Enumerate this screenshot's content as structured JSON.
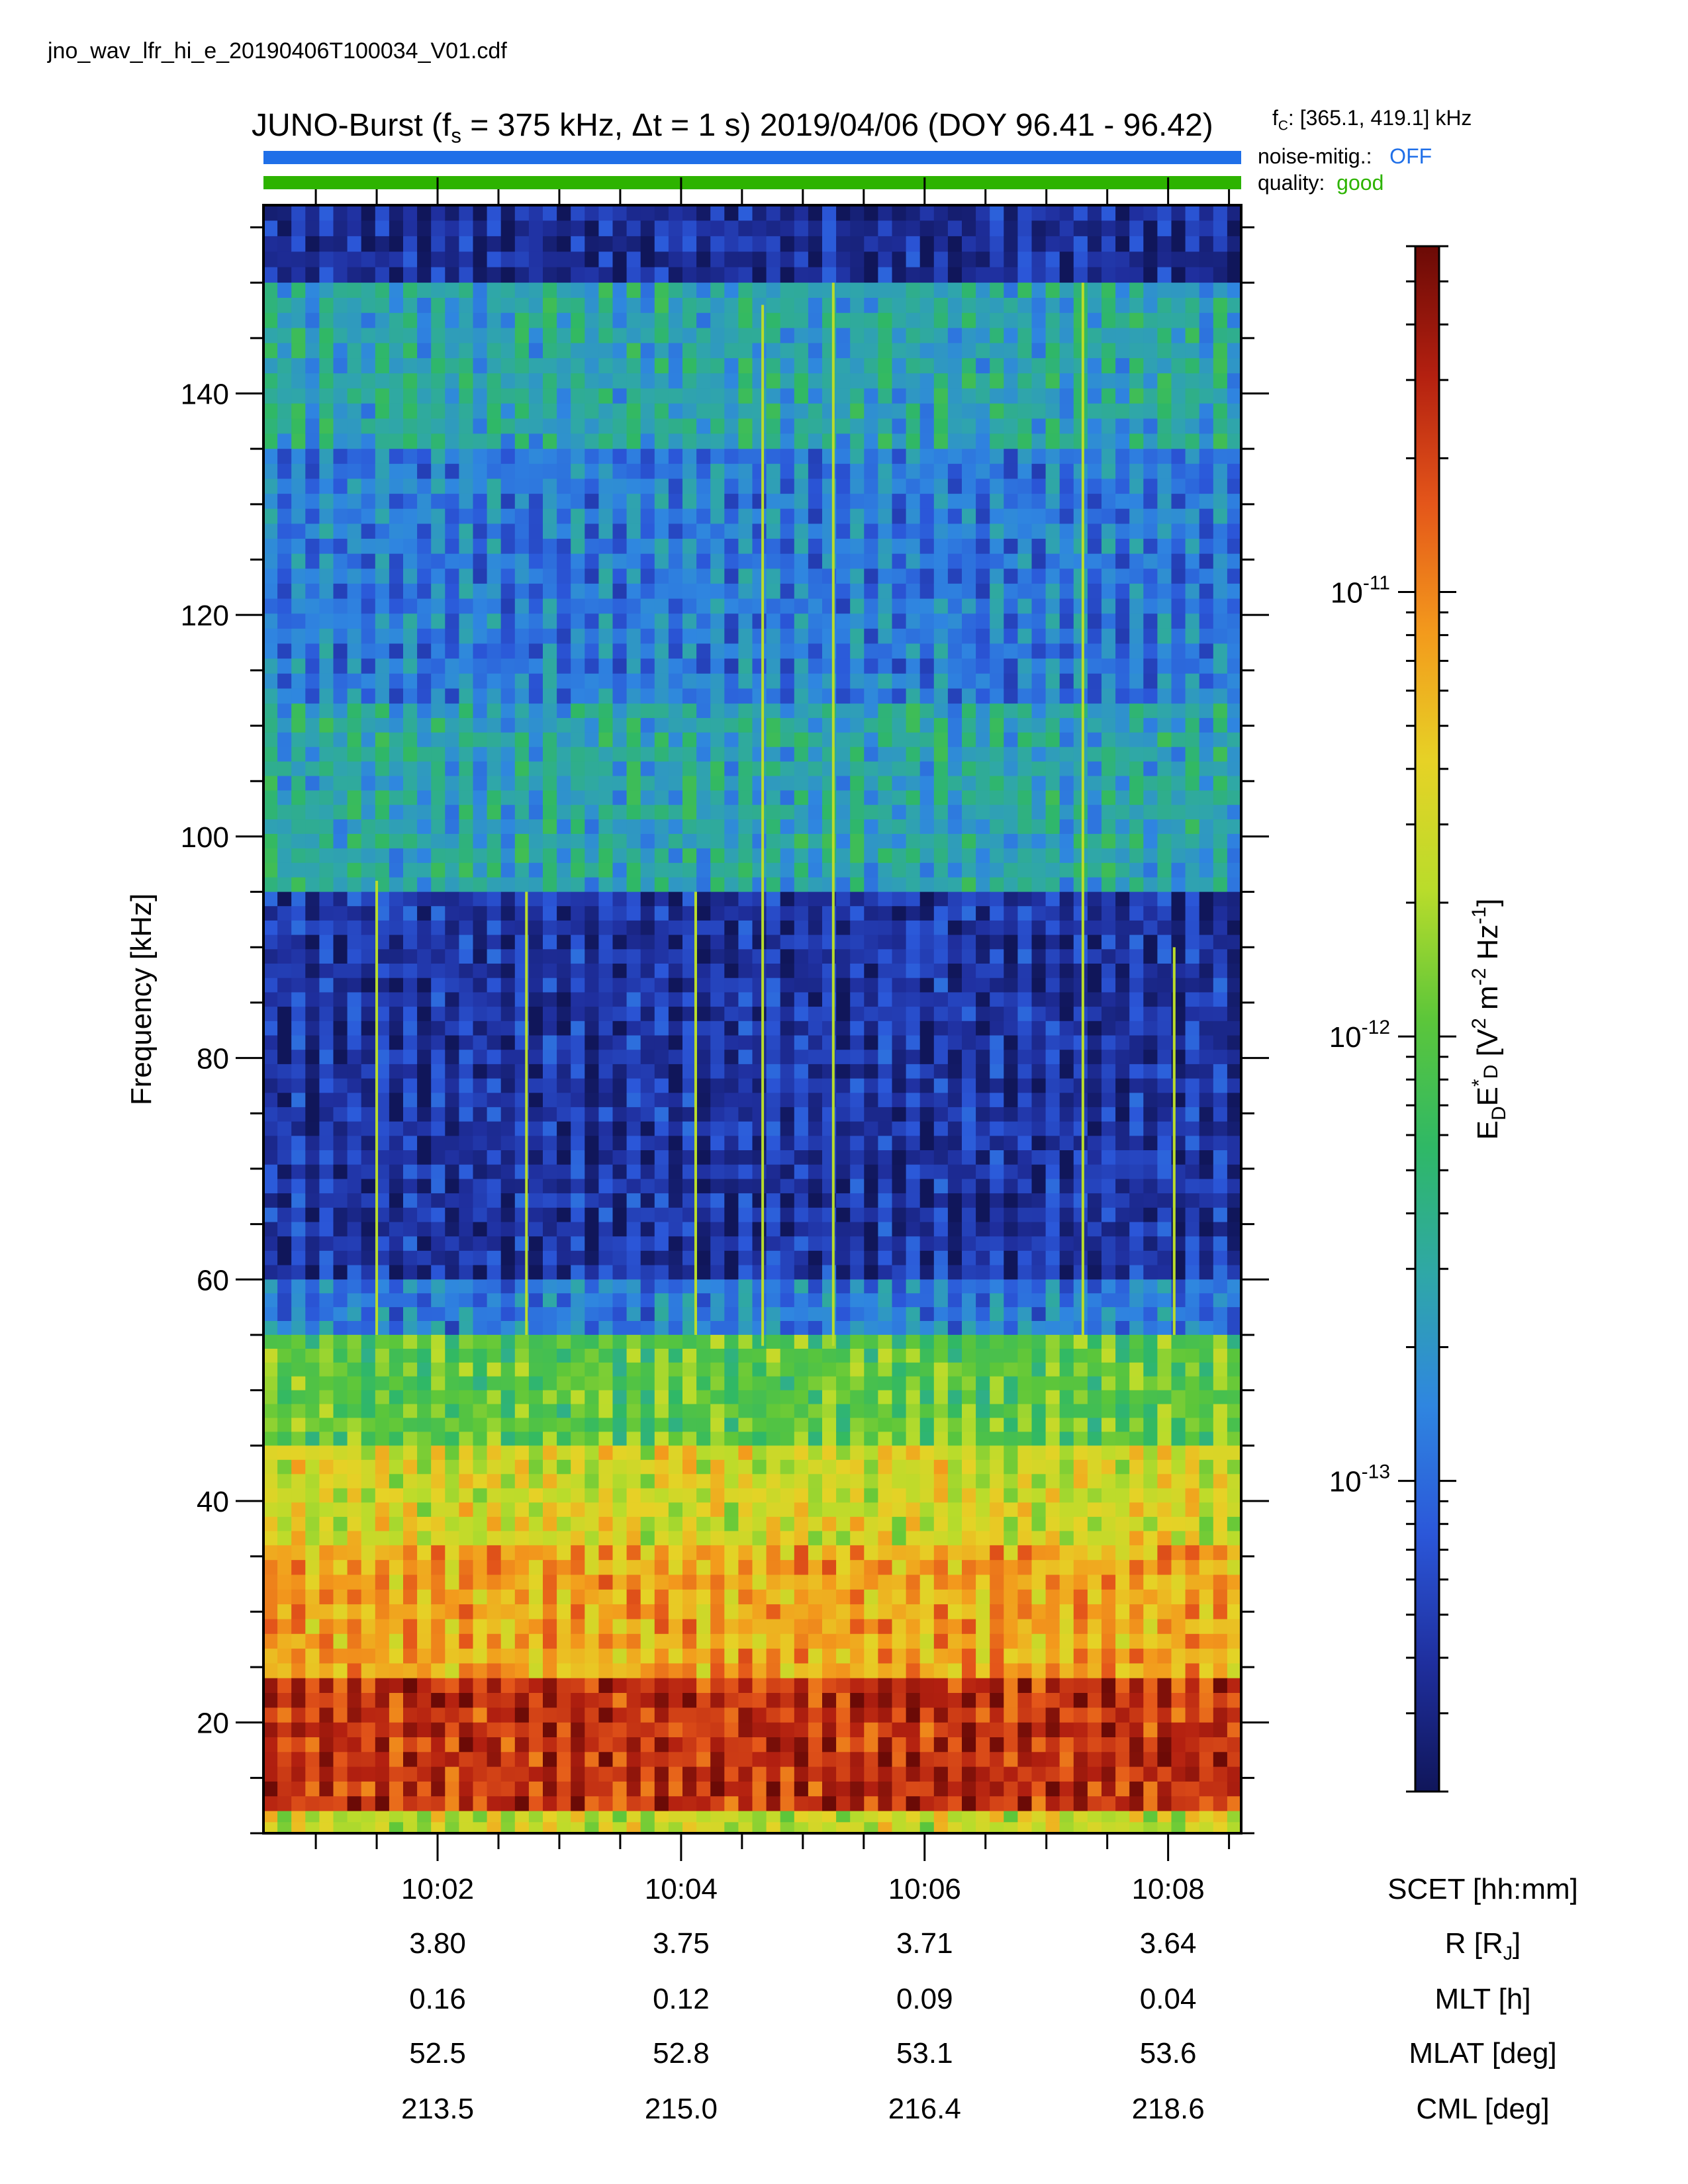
{
  "filename": "jno_wav_lfr_hi_e_20190406T100034_V01.cdf",
  "title": {
    "prefix": "JUNO-Burst (f",
    "sub": "s",
    "middle": " = 375 kHz, Δt = 1 s)  2019/04/06 (DOY 96.41 - 96.42)"
  },
  "fc": {
    "symbol": "f",
    "sub": "C",
    "text": ": [365.1, 419.1] kHz"
  },
  "noise_mitig": {
    "label": "noise-mitig.:",
    "value": "OFF",
    "color": "#1f6fe8",
    "bar_color": "#1f6fe8"
  },
  "quality": {
    "label": "quality:",
    "value": "good",
    "color": "#2db300",
    "bar_color": "#2db300"
  },
  "chart_data": {
    "type": "heatmap",
    "ylabel": "Frequency [kHz]",
    "ylim": [
      10,
      157
    ],
    "yticks": [
      20,
      40,
      60,
      80,
      100,
      120,
      140
    ],
    "xlim_minutes": [
      600.57,
      608.6
    ],
    "xticks": [
      {
        "minute": 602,
        "label": "10:02"
      },
      {
        "minute": 604,
        "label": "10:04"
      },
      {
        "minute": 606,
        "label": "10:06"
      },
      {
        "minute": 608,
        "label": "10:08"
      }
    ],
    "colorbar": {
      "label_parts": [
        "E",
        "D",
        "E",
        "*",
        "D",
        " [V",
        "2",
        " m",
        "-2",
        " Hz",
        "-1",
        "]"
      ],
      "scale": "log",
      "range": [
        2e-14,
        6e-11
      ],
      "major_ticks": [
        {
          "value": 1e-11,
          "base": "10",
          "exp": "-11"
        },
        {
          "value": 1e-12,
          "base": "10",
          "exp": "-12"
        },
        {
          "value": 1e-13,
          "base": "10",
          "exp": "-13"
        }
      ],
      "colors": [
        "#10165a",
        "#1f2f9e",
        "#2b57d9",
        "#2f86e0",
        "#2fa7a8",
        "#2fb866",
        "#5cc63a",
        "#b9dc2b",
        "#e6d226",
        "#f39a1c",
        "#e4561a",
        "#b32010",
        "#6b0a06"
      ]
    },
    "bands": [
      {
        "f_range": [
          150,
          157
        ],
        "level": 0.06
      },
      {
        "f_range": [
          135,
          150
        ],
        "level": 0.32
      },
      {
        "f_range": [
          112,
          135
        ],
        "level": 0.22
      },
      {
        "f_range": [
          95,
          112
        ],
        "level": 0.32
      },
      {
        "f_range": [
          60,
          95
        ],
        "level": 0.08
      },
      {
        "f_range": [
          55,
          60
        ],
        "level": 0.22
      },
      {
        "f_range": [
          45,
          55
        ],
        "level": 0.48
      },
      {
        "f_range": [
          36,
          45
        ],
        "level": 0.62
      },
      {
        "f_range": [
          24,
          36
        ],
        "level": 0.72
      },
      {
        "f_range": [
          12,
          24
        ],
        "level": 0.88
      },
      {
        "f_range": [
          10,
          12
        ],
        "level": 0.6
      }
    ],
    "emission_lines": [
      {
        "minute": 601.5,
        "f_range": [
          55,
          96
        ]
      },
      {
        "minute": 602.73,
        "f_range": [
          55,
          95
        ]
      },
      {
        "minute": 604.12,
        "f_range": [
          55,
          95
        ]
      },
      {
        "minute": 604.67,
        "f_range": [
          54,
          148
        ]
      },
      {
        "minute": 605.25,
        "f_range": [
          54,
          150
        ]
      },
      {
        "minute": 607.3,
        "f_range": [
          54,
          150
        ]
      },
      {
        "minute": 608.05,
        "f_range": [
          55,
          90
        ]
      }
    ]
  },
  "ephemeris": {
    "rows": [
      {
        "label": "SCET [hh:mm]",
        "values": [
          "10:02",
          "10:04",
          "10:06",
          "10:08"
        ]
      },
      {
        "label": "R [R",
        "label_sub": "J",
        "label_end": "]",
        "values": [
          "3.80",
          "3.75",
          "3.71",
          "3.64"
        ]
      },
      {
        "label": "MLT [h]",
        "values": [
          "0.16",
          "0.12",
          "0.09",
          "0.04"
        ]
      },
      {
        "label": "MLAT [deg]",
        "values": [
          "52.5",
          "52.8",
          "53.1",
          "53.6"
        ]
      },
      {
        "label": "CML [deg]",
        "values": [
          "213.5",
          "215.0",
          "216.4",
          "218.6"
        ]
      }
    ]
  }
}
